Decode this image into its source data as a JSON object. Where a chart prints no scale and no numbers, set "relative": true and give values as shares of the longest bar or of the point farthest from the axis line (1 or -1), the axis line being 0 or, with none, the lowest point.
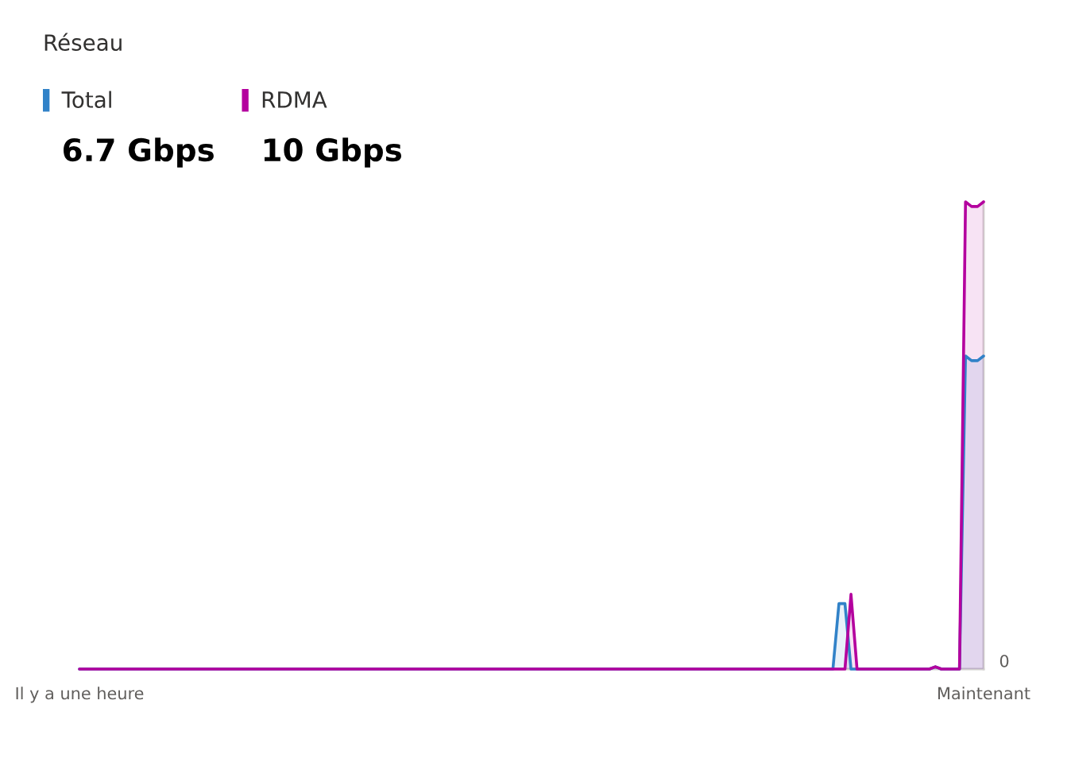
{
  "chart_data": {
    "type": "area",
    "title": "Réseau",
    "relative": true,
    "categories": [
      "Il y a une heure",
      null,
      null,
      null,
      null,
      null,
      null,
      null,
      null,
      null,
      null,
      null,
      null,
      null,
      null,
      null,
      null,
      null,
      null,
      null,
      null,
      null,
      null,
      null,
      null,
      null,
      null,
      null,
      null,
      null,
      null,
      null,
      null,
      null,
      null,
      null,
      null,
      null,
      null,
      null,
      null,
      null,
      null,
      null,
      null,
      null,
      null,
      null,
      null,
      null,
      null,
      null,
      null,
      null,
      null,
      null,
      null,
      null,
      null,
      null,
      null,
      null,
      null,
      null,
      null,
      null,
      null,
      null,
      null,
      null,
      null,
      null,
      null,
      null,
      null,
      null,
      null,
      null,
      null,
      null,
      null,
      null,
      null,
      null,
      null,
      null,
      null,
      null,
      null,
      null,
      null,
      null,
      null,
      null,
      null,
      null,
      null,
      null,
      null,
      null,
      null,
      null,
      null,
      null,
      null,
      null,
      null,
      null,
      null,
      null,
      null,
      null,
      null,
      null,
      null,
      null,
      null,
      null,
      null,
      null,
      null,
      null,
      null,
      null,
      null,
      null,
      null,
      null,
      null,
      null,
      null,
      null,
      null,
      null,
      null,
      null,
      null,
      null,
      null,
      null,
      null,
      null,
      null,
      null,
      null,
      null,
      null,
      null,
      null,
      null,
      "Maintenant"
    ],
    "series": [
      {
        "name": "Total",
        "color": "#3182c8",
        "values": [
          0,
          0,
          0,
          0,
          0,
          0,
          0,
          0,
          0,
          0,
          0,
          0,
          0,
          0,
          0,
          0,
          0,
          0,
          0,
          0,
          0,
          0,
          0,
          0,
          0,
          0,
          0,
          0,
          0,
          0,
          0,
          0,
          0,
          0,
          0,
          0,
          0,
          0,
          0,
          0,
          0,
          0,
          0,
          0,
          0,
          0,
          0,
          0,
          0,
          0,
          0,
          0,
          0,
          0,
          0,
          0,
          0,
          0,
          0,
          0,
          0,
          0,
          0,
          0,
          0,
          0,
          0,
          0,
          0,
          0,
          0,
          0,
          0,
          0,
          0,
          0,
          0,
          0,
          0,
          0,
          0,
          0,
          0,
          0,
          0,
          0,
          0,
          0,
          0,
          0,
          0,
          0,
          0,
          0,
          0,
          0,
          0,
          0,
          0,
          0,
          0,
          0,
          0,
          0,
          0,
          0,
          0,
          0,
          0,
          0,
          0,
          0,
          0,
          0,
          0,
          0,
          0,
          0,
          0,
          0,
          0,
          0,
          0,
          0,
          0,
          0,
          0.14,
          0.14,
          0,
          0,
          0,
          0,
          0,
          0,
          0,
          0,
          0,
          0,
          0,
          0,
          0,
          0,
          0.005,
          0,
          0,
          0,
          0,
          0.67,
          0.66,
          0.66,
          0.67
        ]
      },
      {
        "name": "RDMA",
        "color": "#b4009e",
        "values": [
          0,
          0,
          0,
          0,
          0,
          0,
          0,
          0,
          0,
          0,
          0,
          0,
          0,
          0,
          0,
          0,
          0,
          0,
          0,
          0,
          0,
          0,
          0,
          0,
          0,
          0,
          0,
          0,
          0,
          0,
          0,
          0,
          0,
          0,
          0,
          0,
          0,
          0,
          0,
          0,
          0,
          0,
          0,
          0,
          0,
          0,
          0,
          0,
          0,
          0,
          0,
          0,
          0,
          0,
          0,
          0,
          0,
          0,
          0,
          0,
          0,
          0,
          0,
          0,
          0,
          0,
          0,
          0,
          0,
          0,
          0,
          0,
          0,
          0,
          0,
          0,
          0,
          0,
          0,
          0,
          0,
          0,
          0,
          0,
          0,
          0,
          0,
          0,
          0,
          0,
          0,
          0,
          0,
          0,
          0,
          0,
          0,
          0,
          0,
          0,
          0,
          0,
          0,
          0,
          0,
          0,
          0,
          0,
          0,
          0,
          0,
          0,
          0,
          0,
          0,
          0,
          0,
          0,
          0,
          0,
          0,
          0,
          0,
          0,
          0,
          0,
          0,
          0,
          0.16,
          0,
          0,
          0,
          0,
          0,
          0,
          0,
          0,
          0,
          0,
          0,
          0,
          0,
          0.005,
          0,
          0,
          0,
          0,
          1,
          0.99,
          0.99,
          1
        ]
      }
    ],
    "legend": "top left",
    "annotations": [
      "6.7 Gbps",
      "10 Gbps",
      "0"
    ]
  }
}
